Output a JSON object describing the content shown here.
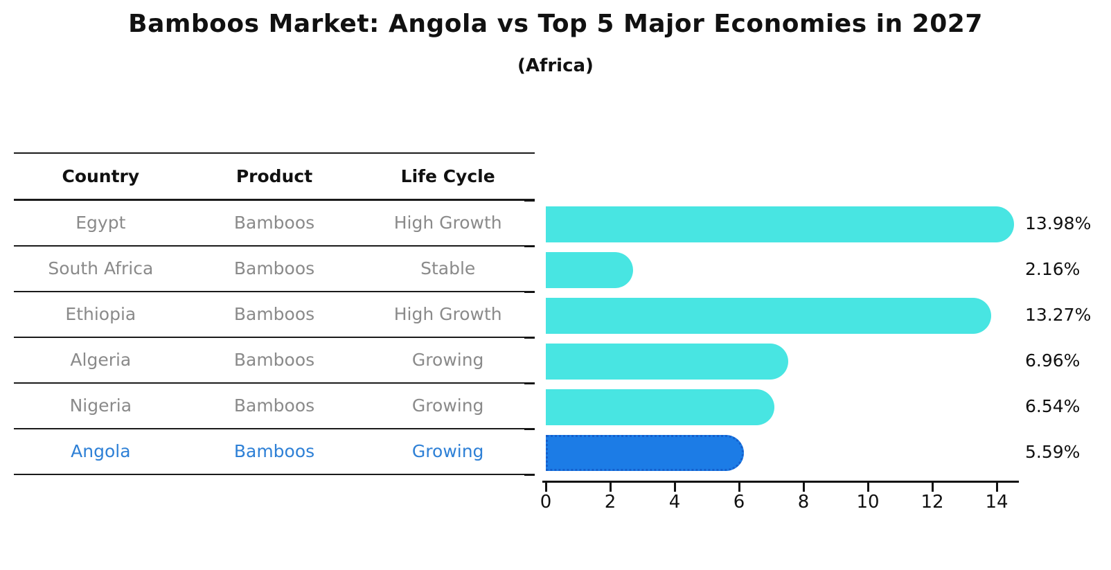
{
  "title": "Bamboos Market: Angola vs Top 5 Major Economies in 2027",
  "subtitle": "(Africa)",
  "table": {
    "headers": [
      "Country",
      "Product",
      "Life Cycle"
    ],
    "rows": [
      {
        "country": "Egypt",
        "product": "Bamboos",
        "life_cycle": "High Growth",
        "highlight": false
      },
      {
        "country": "South Africa",
        "product": "Bamboos",
        "life_cycle": "Stable",
        "highlight": false
      },
      {
        "country": "Ethiopia",
        "product": "Bamboos",
        "life_cycle": "High Growth",
        "highlight": false
      },
      {
        "country": "Algeria",
        "product": "Bamboos",
        "life_cycle": "Growing",
        "highlight": false
      },
      {
        "country": "Nigeria",
        "product": "Bamboos",
        "life_cycle": "Growing",
        "highlight": true
      }
    ],
    "highlight_row": {
      "country": "Angola",
      "product": "Bamboos",
      "life_cycle": "Growing"
    }
  },
  "chart_data": {
    "type": "bar",
    "orientation": "horizontal",
    "title": "Bamboos Market: Angola vs Top 5 Major Economies in 2027",
    "subtitle": "(Africa)",
    "categories": [
      "Egypt",
      "South Africa",
      "Ethiopia",
      "Algeria",
      "Nigeria",
      "Angola"
    ],
    "values": [
      13.98,
      2.16,
      13.27,
      6.96,
      6.54,
      5.59
    ],
    "value_labels": [
      "13.98%",
      "2.16%",
      "13.27%",
      "6.96%",
      "6.54%",
      "5.59%"
    ],
    "unit": "%",
    "xlabel": "",
    "ylabel": "",
    "x_ticks": [
      0,
      2,
      4,
      6,
      8,
      10,
      12,
      14
    ],
    "xlim": [
      0,
      14.67
    ],
    "grid": false,
    "legend": "none",
    "value_label_position": "right",
    "highlight_category": "Angola",
    "colors": {
      "bar": "#48e5e2",
      "highlight_bar": "#1c7ce6",
      "highlight_border": "#155fcc",
      "highlight_text": "#2e80d6",
      "muted_text": "#8a8a8a",
      "axis": "#111111",
      "background": "#ffffff"
    }
  }
}
